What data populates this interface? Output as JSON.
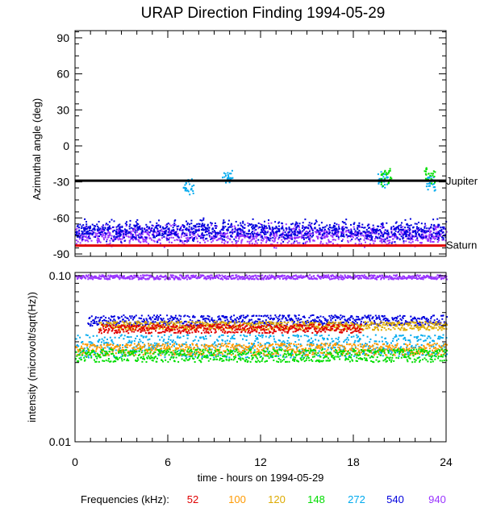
{
  "title": "URAP Direction Finding  1994-05-29",
  "chart_data": [
    {
      "type": "scatter",
      "panel": "top",
      "ylabel": "Azimuthal angle (deg)",
      "xlim": [
        0,
        24
      ],
      "ylim": [
        -92,
        96
      ],
      "yticks": [
        -90,
        -60,
        -30,
        0,
        30,
        60,
        90
      ],
      "reference_lines": [
        {
          "label": "Jupiter",
          "y": -29,
          "color": "#000000"
        },
        {
          "label": "Saturn",
          "y": -83,
          "color": "#e00000"
        }
      ],
      "series": [
        {
          "name": "940",
          "color": "#9933ff",
          "band_center": -74,
          "band_spread": 8,
          "x_range": [
            0,
            24
          ]
        },
        {
          "name": "540",
          "color": "#0000dd",
          "band_center": -70,
          "band_spread": 8,
          "x_range": [
            0,
            24
          ]
        },
        {
          "name": "272",
          "color": "#00aaee",
          "clusters": [
            {
              "x": 7.3,
              "y": -34
            },
            {
              "x": 9.8,
              "y": -26
            },
            {
              "x": 19.9,
              "y": -28
            },
            {
              "x": 23.0,
              "y": -30
            }
          ]
        },
        {
          "name": "148",
          "color": "#00dd00",
          "clusters": [
            {
              "x": 20.1,
              "y": -25
            },
            {
              "x": 22.9,
              "y": -24
            }
          ]
        }
      ]
    },
    {
      "type": "line",
      "panel": "bottom",
      "ylabel": "intensity (microvolt/sqrt(Hz))",
      "xlabel": "time - hours on 1994-05-29",
      "x_ticks": [
        "0",
        "6",
        "12",
        "18",
        "24"
      ],
      "xlim": [
        0,
        24
      ],
      "yscale": "log",
      "ylim": [
        0.01,
        0.1
      ],
      "ytick_labels": [
        "0.10",
        "0.01"
      ],
      "series": [
        {
          "name": "940",
          "color": "#9933ff",
          "x_range": [
            0,
            24
          ],
          "value": 0.099,
          "noise": 0.003
        },
        {
          "name": "540",
          "color": "#0000dd",
          "x_range": [
            0.8,
            24
          ],
          "value": 0.0545,
          "noise": 0.004
        },
        {
          "name": "120",
          "color": "#ddaa00",
          "x_range": [
            1.5,
            24
          ],
          "value": 0.0505,
          "noise": 0.003
        },
        {
          "name": "52",
          "color": "#e00000",
          "x_range": [
            1.5,
            18.5
          ],
          "value": 0.0485,
          "noise": 0.003
        },
        {
          "name": "272",
          "color": "#00aaee",
          "x_range": [
            0,
            24
          ],
          "value": 0.0385,
          "noise": 0.006
        },
        {
          "name": "100",
          "color": "#ff9900",
          "x_range": [
            0,
            24
          ],
          "value": 0.0365,
          "noise": 0.003
        },
        {
          "name": "148",
          "color": "#00dd00",
          "x_range": [
            0,
            24
          ],
          "value": 0.0335,
          "noise": 0.003
        }
      ]
    }
  ],
  "legend": {
    "label": "Frequencies (kHz):",
    "items": [
      {
        "name": "52",
        "color": "#e00000"
      },
      {
        "name": "100",
        "color": "#ff9900"
      },
      {
        "name": "120",
        "color": "#ddaa00"
      },
      {
        "name": "148",
        "color": "#00dd00"
      },
      {
        "name": "272",
        "color": "#00aaee"
      },
      {
        "name": "540",
        "color": "#0000dd"
      },
      {
        "name": "940",
        "color": "#9933ff"
      }
    ]
  }
}
